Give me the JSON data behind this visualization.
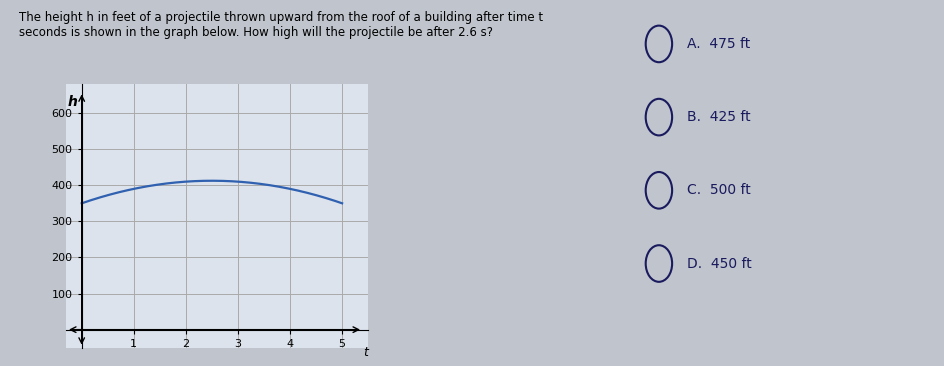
{
  "title_text": "The height h in feet of a projectile thrown upward from the roof of a building after time t\nseconds is shown in the graph below. How high will the projectile be after 2.6 s?",
  "choices": [
    "A.  475 ft",
    "B.  425 ft",
    "C.  500 ft",
    "D.  450 ft"
  ],
  "curve_color": "#3060b0",
  "curve_lw": 1.6,
  "parabola_a": -10,
  "parabola_b": 50,
  "parabola_c": 350,
  "t_start": 0,
  "t_end": 5,
  "xlim": [
    -0.3,
    5.5
  ],
  "ylim": [
    -50,
    680
  ],
  "yticks": [
    100,
    200,
    300,
    400,
    500,
    600
  ],
  "xticks": [
    1,
    2,
    3,
    4,
    5
  ],
  "xlabel": "t",
  "ylabel": "h",
  "grid_color": "#aaaaaa",
  "plot_bg": "#dce3ec",
  "fig_bg": "#c0c4cc",
  "text_color": "#1a1a5e",
  "fontsize_title": 8.5,
  "fontsize_choices": 10,
  "fontsize_ticks": 8,
  "fontsize_axlabel": 9
}
